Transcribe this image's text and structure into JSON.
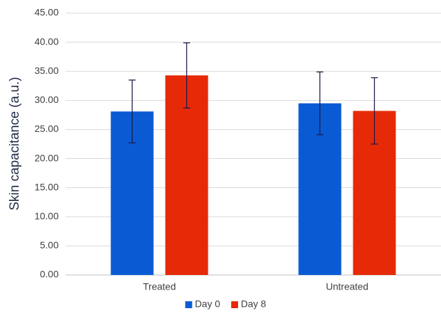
{
  "chart_data": {
    "type": "bar",
    "y_label": "Skin capacitance (a.u.)",
    "categories": [
      "Treated",
      "Untreated"
    ],
    "series": [
      {
        "name": "Day 0",
        "color": "#0a5bd3",
        "values": [
          28.1,
          29.5
        ],
        "errors": [
          5.4,
          5.4
        ]
      },
      {
        "name": "Day 8",
        "color": "#e62a08",
        "values": [
          34.3,
          28.2
        ],
        "errors": [
          5.6,
          5.7
        ]
      }
    ],
    "ylim": [
      0,
      45
    ],
    "yticks": [
      {
        "value": 0,
        "label": "0.00"
      },
      {
        "value": 5,
        "label": "5.00"
      },
      {
        "value": 10,
        "label": "10.00"
      },
      {
        "value": 15,
        "label": "15.00"
      },
      {
        "value": 20,
        "label": "20.00"
      },
      {
        "value": 25,
        "label": "25.00"
      },
      {
        "value": 30,
        "label": "30.00"
      },
      {
        "value": 35,
        "label": "35.00"
      },
      {
        "value": 40,
        "label": "40.00"
      },
      {
        "value": 45,
        "label": "45.00"
      }
    ],
    "grid": true,
    "legend": "bottom"
  }
}
